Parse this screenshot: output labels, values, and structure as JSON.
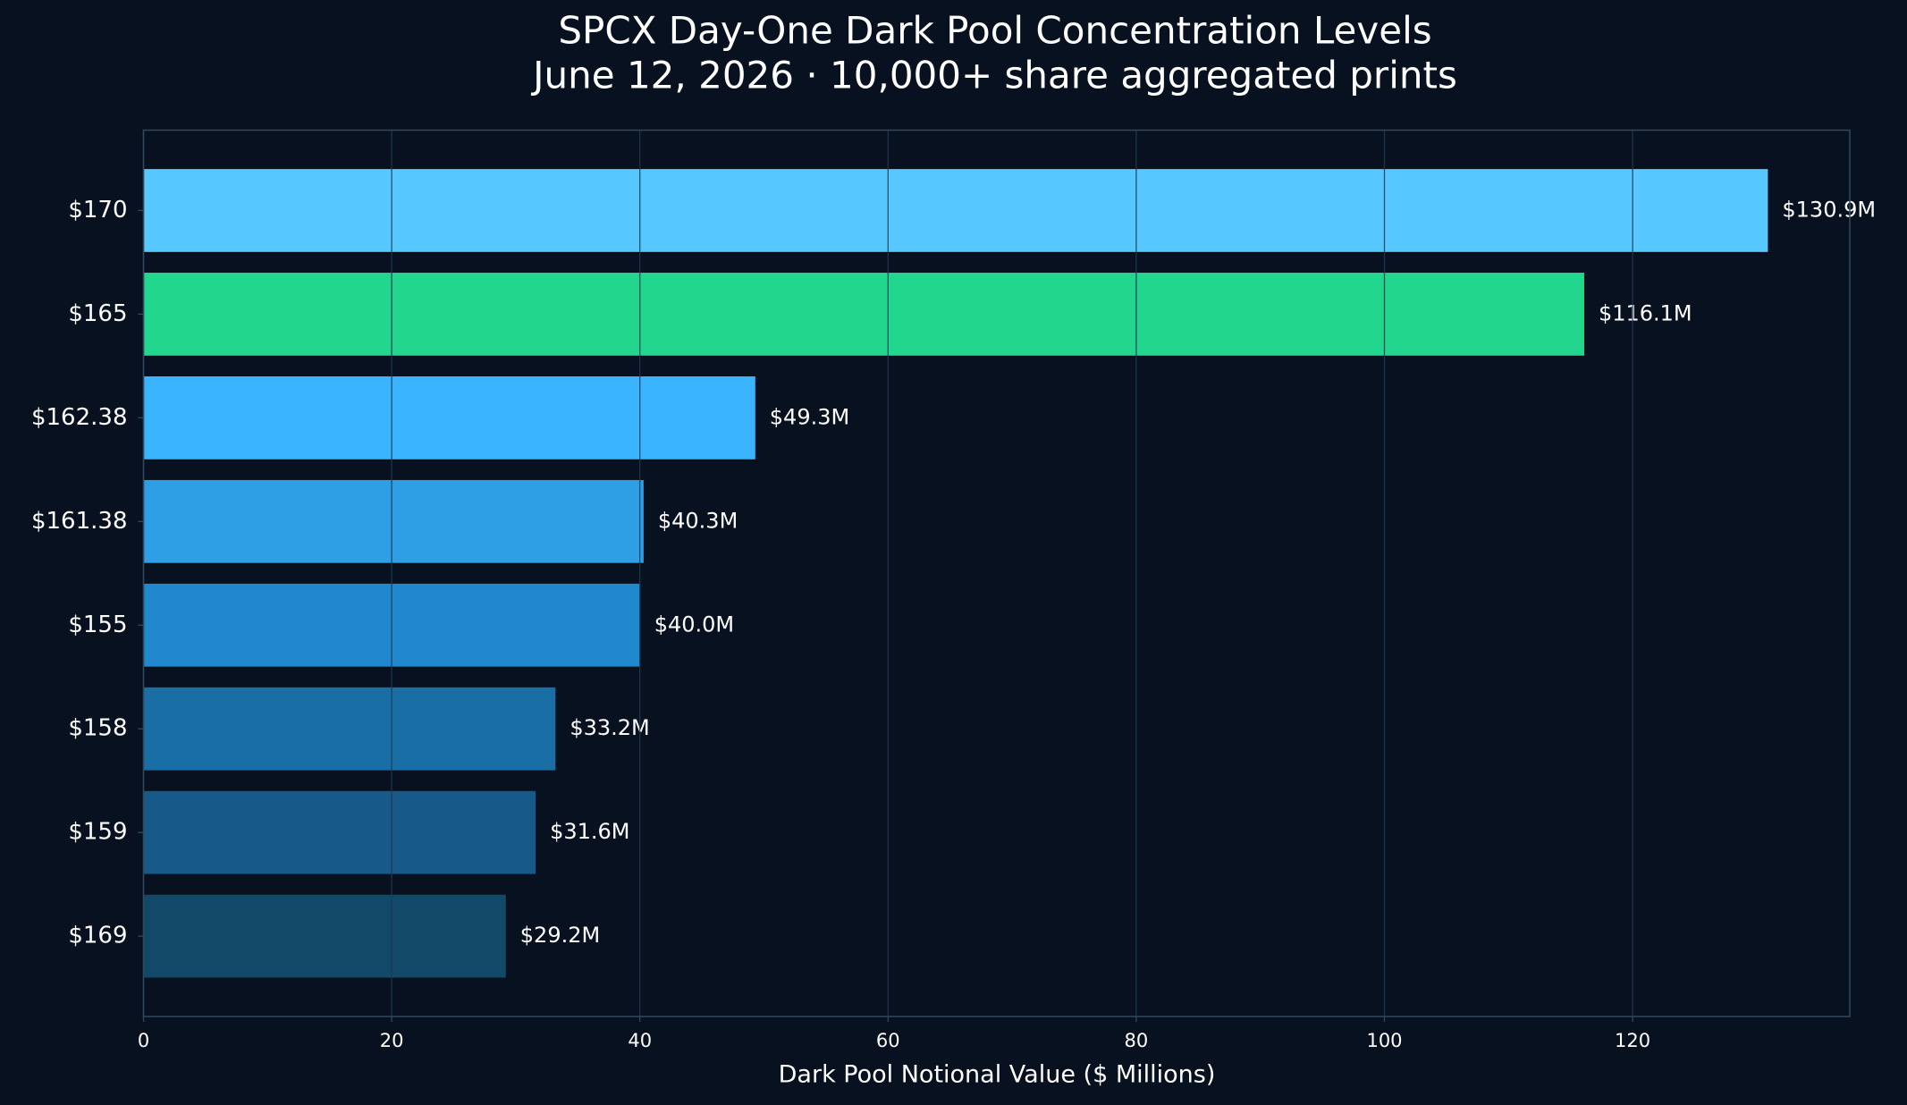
{
  "chart_data": {
    "type": "barh",
    "title": "SPCX Day-One Dark Pool Concentration Levels",
    "subtitle": "June 12, 2026 · 10,000+ share aggregated prints",
    "xlabel": "Dark Pool Notional Value ($ Millions)",
    "categories": [
      "$170",
      "$165",
      "$162.38",
      "$161.38",
      "$155",
      "$158",
      "$159",
      "$169"
    ],
    "values": [
      130.9,
      116.1,
      49.3,
      40.3,
      40.0,
      33.2,
      31.6,
      29.2
    ],
    "value_labels": [
      "$130.9M",
      "$116.1M",
      "$49.3M",
      "$40.3M",
      "$40.0M",
      "$33.2M",
      "$31.6M",
      "$29.2M"
    ],
    "colors": [
      "#56c8ff",
      "#22d68e",
      "#3bb4ff",
      "#2e9fe4",
      "#2088cc",
      "#1a6ea6",
      "#175a8a",
      "#124868"
    ],
    "xlim": [
      0,
      137.5
    ],
    "xticks": [
      0,
      20,
      40,
      60,
      80,
      100,
      120
    ],
    "grid": true
  }
}
